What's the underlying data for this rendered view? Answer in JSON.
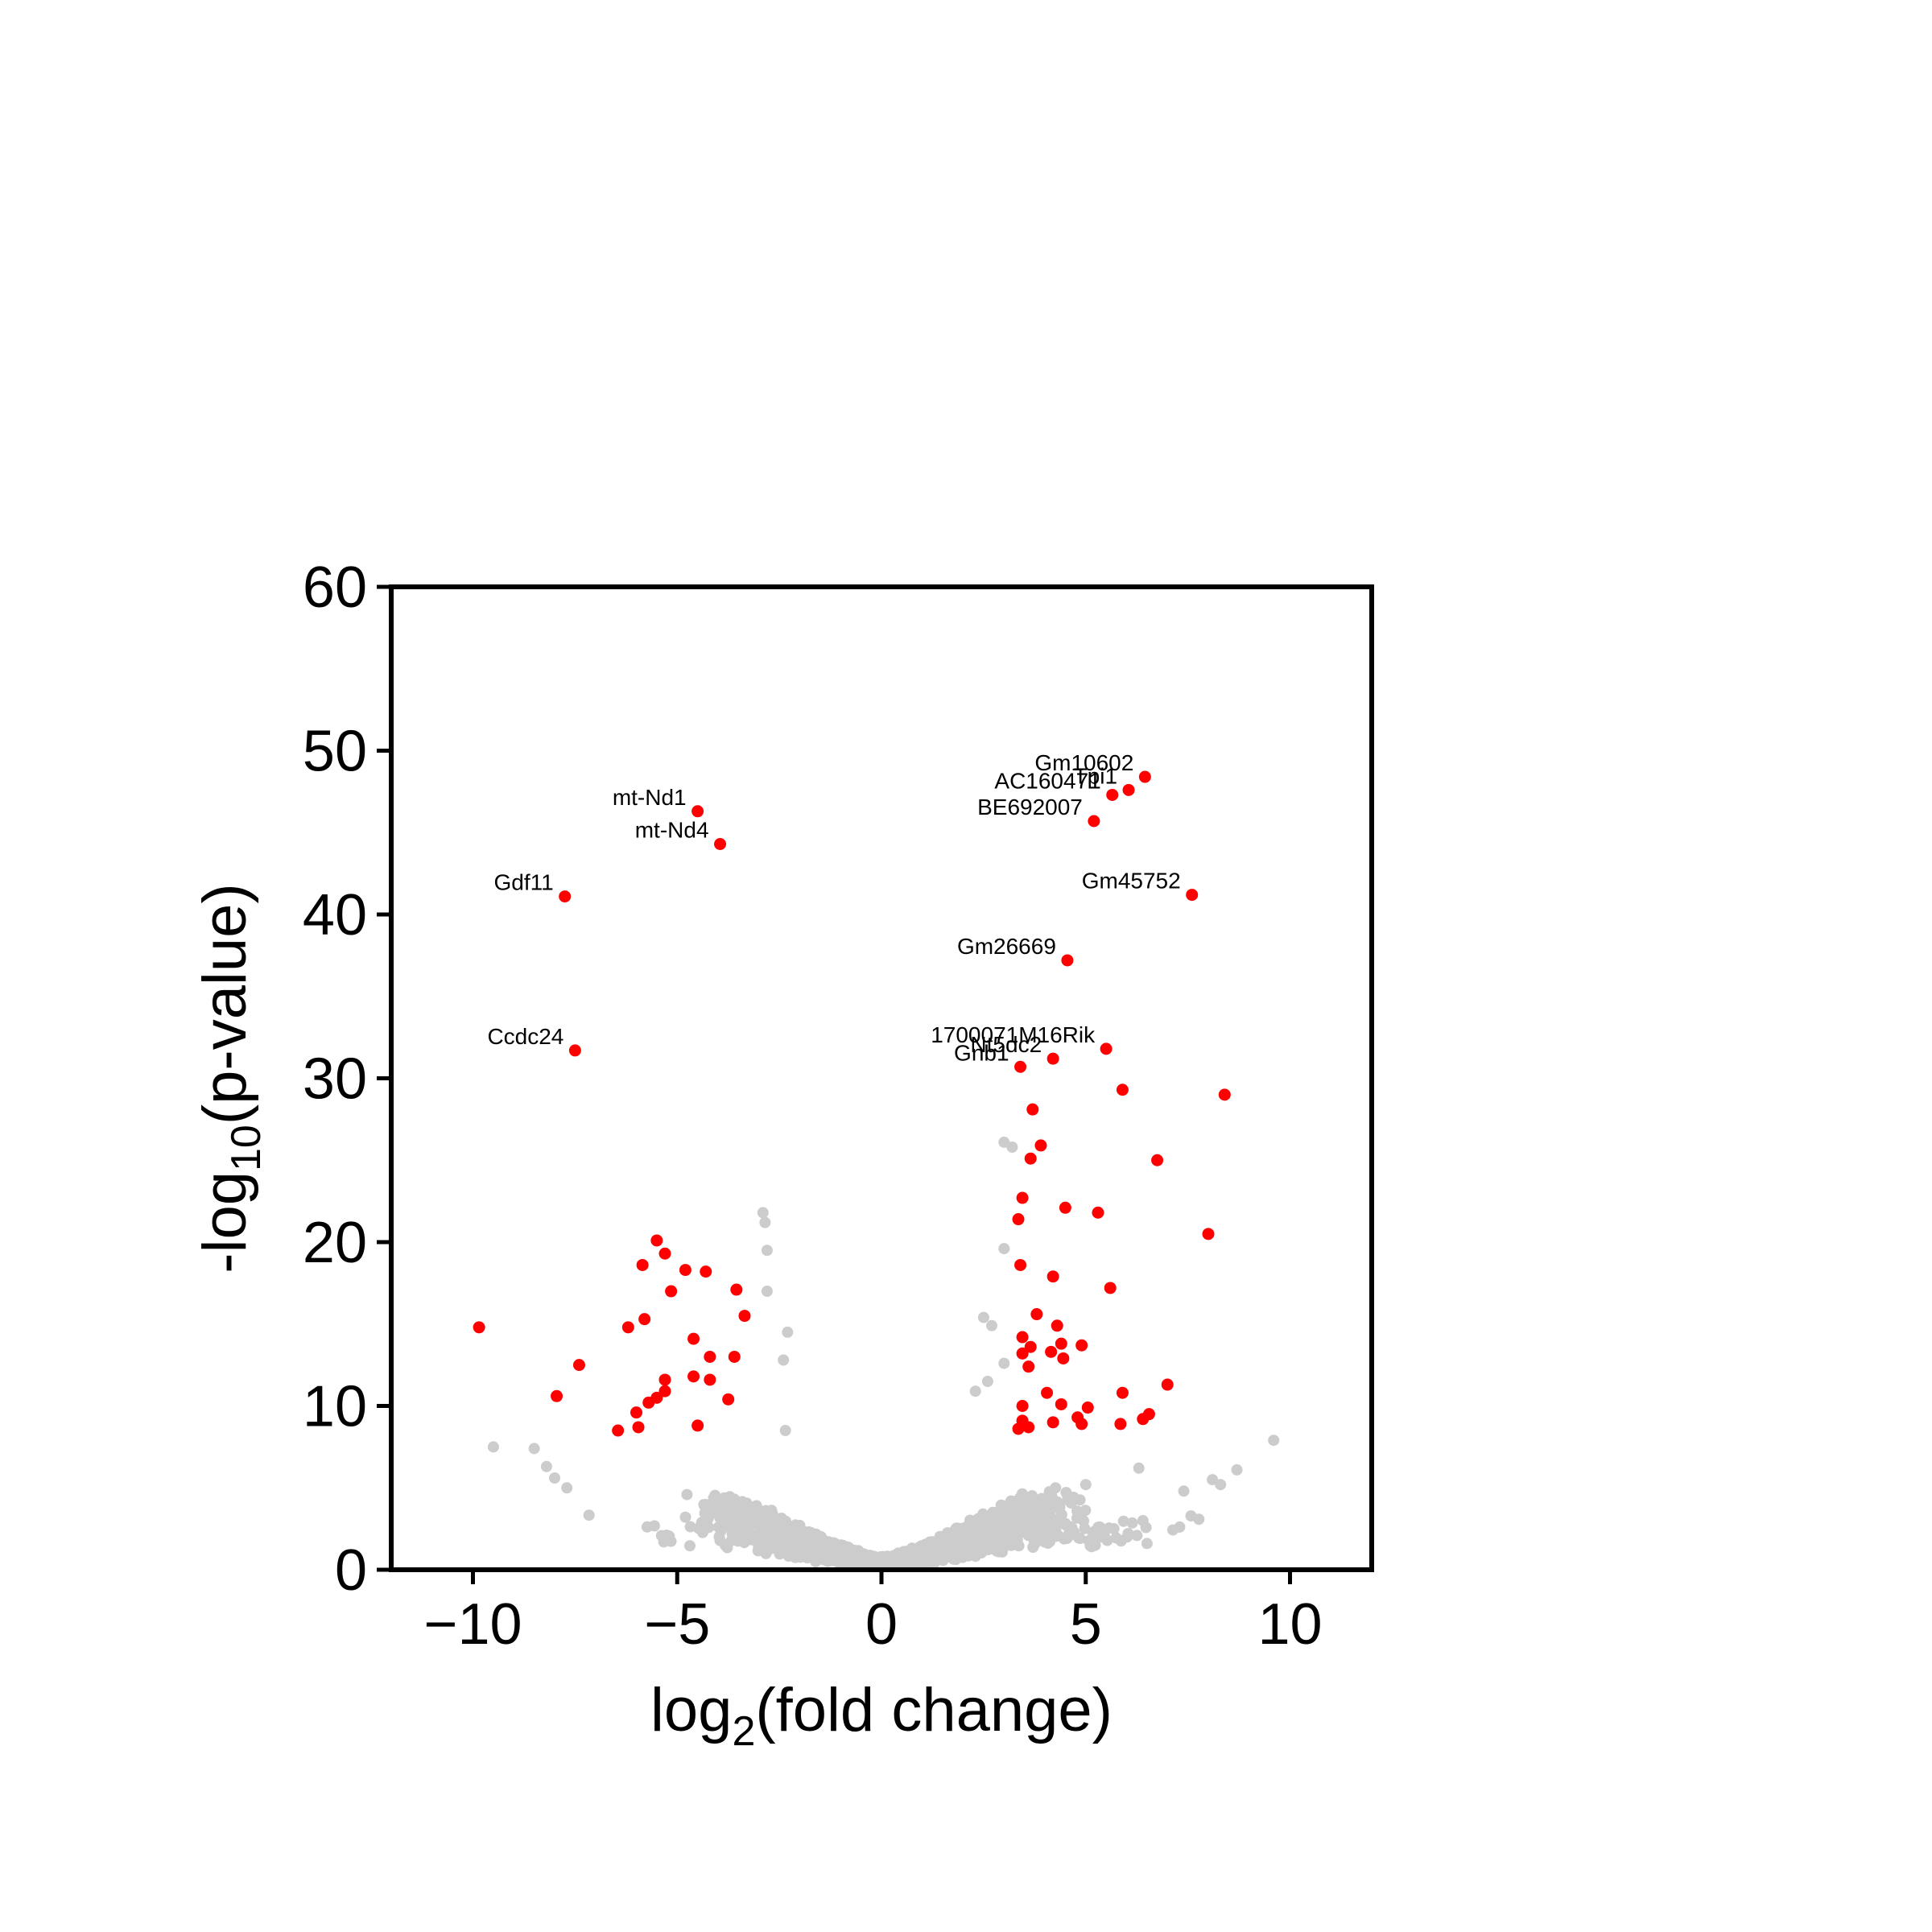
{
  "chart_data": {
    "type": "scatter",
    "title": "",
    "xlabel": {
      "base": "log",
      "sub": "2",
      "rest": "(fold change)"
    },
    "ylabel": {
      "base": "-log",
      "sub": "10",
      "rest": "(p-value)"
    },
    "xlim": [
      -12,
      12
    ],
    "ylim": [
      0,
      60
    ],
    "xticks": [
      {
        "value": -10,
        "label": "−10"
      },
      {
        "value": -5,
        "label": "−5"
      },
      {
        "value": 0,
        "label": "0"
      },
      {
        "value": 5,
        "label": "5"
      },
      {
        "value": 10,
        "label": "10"
      }
    ],
    "yticks": [
      {
        "value": 0,
        "label": "0"
      },
      {
        "value": 10,
        "label": "10"
      },
      {
        "value": 20,
        "label": "20"
      },
      {
        "value": 30,
        "label": "30"
      },
      {
        "value": 40,
        "label": "40"
      },
      {
        "value": 50,
        "label": "50"
      },
      {
        "value": 60,
        "label": "60"
      }
    ],
    "grid": false,
    "colors": {
      "significant": "#ff0000",
      "not_significant": "#cccccc",
      "axes": "#000000"
    },
    "labeled_genes": [
      {
        "name": "Gm10602",
        "x": 6.45,
        "y": 48.4,
        "label_side": "left"
      },
      {
        "name": "Tpi1",
        "x": 6.05,
        "y": 47.6,
        "label_side": "left"
      },
      {
        "name": "AC160471",
        "x": 5.65,
        "y": 47.3,
        "label_side": "left"
      },
      {
        "name": "BE692007",
        "x": 5.2,
        "y": 45.7,
        "label_side": "left"
      },
      {
        "name": "mt-Nd1",
        "x": -4.5,
        "y": 46.3,
        "label_side": "left"
      },
      {
        "name": "mt-Nd4",
        "x": -3.95,
        "y": 44.3,
        "label_side": "left"
      },
      {
        "name": "Gdf11",
        "x": -7.75,
        "y": 41.1,
        "label_side": "left"
      },
      {
        "name": "Gm45752",
        "x": 7.6,
        "y": 41.2,
        "label_side": "left"
      },
      {
        "name": "Gm26669",
        "x": 4.55,
        "y": 37.2,
        "label_side": "left"
      },
      {
        "name": "Ccdc24",
        "x": -7.5,
        "y": 31.7,
        "label_side": "left"
      },
      {
        "name": "1700071M16Rik",
        "x": 5.5,
        "y": 31.8,
        "label_side": "left"
      },
      {
        "name": "Nt5dc2",
        "x": 4.2,
        "y": 31.2,
        "label_side": "left"
      },
      {
        "name": "Gnb1",
        "x": 3.4,
        "y": 30.7,
        "label_side": "left"
      }
    ],
    "significant_points": [
      [
        8.4,
        29.0
      ],
      [
        5.9,
        29.3
      ],
      [
        3.7,
        28.1
      ],
      [
        3.9,
        25.9
      ],
      [
        3.65,
        25.1
      ],
      [
        6.75,
        25.0
      ],
      [
        3.45,
        22.7
      ],
      [
        4.5,
        22.1
      ],
      [
        5.3,
        21.8
      ],
      [
        3.35,
        21.4
      ],
      [
        8.0,
        20.5
      ],
      [
        3.4,
        18.6
      ],
      [
        4.2,
        17.9
      ],
      [
        5.6,
        17.2
      ],
      [
        3.8,
        15.6
      ],
      [
        4.3,
        14.9
      ],
      [
        3.45,
        14.2
      ],
      [
        4.4,
        13.8
      ],
      [
        4.9,
        13.7
      ],
      [
        3.65,
        13.6
      ],
      [
        4.15,
        13.3
      ],
      [
        3.45,
        13.2
      ],
      [
        4.45,
        12.9
      ],
      [
        3.6,
        12.4
      ],
      [
        7.0,
        11.3
      ],
      [
        4.05,
        10.8
      ],
      [
        5.9,
        10.8
      ],
      [
        4.4,
        10.1
      ],
      [
        3.45,
        10.0
      ],
      [
        5.05,
        9.9
      ],
      [
        6.55,
        9.5
      ],
      [
        4.8,
        9.3
      ],
      [
        6.4,
        9.2
      ],
      [
        3.45,
        9.1
      ],
      [
        4.2,
        9.0
      ],
      [
        4.9,
        8.9
      ],
      [
        5.85,
        8.9
      ],
      [
        3.35,
        8.6
      ],
      [
        3.6,
        8.7
      ],
      [
        -5.5,
        20.1
      ],
      [
        -5.3,
        19.3
      ],
      [
        -5.85,
        18.6
      ],
      [
        -4.8,
        18.3
      ],
      [
        -4.3,
        18.2
      ],
      [
        -3.55,
        17.1
      ],
      [
        -5.15,
        17.0
      ],
      [
        -3.35,
        15.5
      ],
      [
        -5.8,
        15.3
      ],
      [
        -6.2,
        14.8
      ],
      [
        -9.85,
        14.8
      ],
      [
        -4.6,
        14.1
      ],
      [
        -4.2,
        13.0
      ],
      [
        -3.6,
        13.0
      ],
      [
        -7.4,
        12.5
      ],
      [
        -4.6,
        11.8
      ],
      [
        -4.2,
        11.6
      ],
      [
        -5.3,
        11.6
      ],
      [
        -5.3,
        10.9
      ],
      [
        -5.5,
        10.5
      ],
      [
        -7.95,
        10.6
      ],
      [
        -3.75,
        10.4
      ],
      [
        -5.7,
        10.2
      ],
      [
        -6.0,
        9.6
      ],
      [
        -6.45,
        8.5
      ],
      [
        -5.95,
        8.7
      ],
      [
        -4.5,
        8.8
      ]
    ],
    "background_points_note": ""
  }
}
